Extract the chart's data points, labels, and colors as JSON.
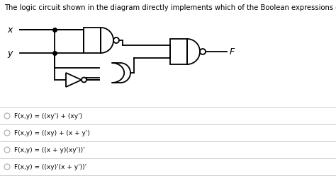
{
  "title": "The logic circuit shown in the diagram directly implements which of the Boolean expressions given below?",
  "title_fontsize": 7.2,
  "bg_color": "#ffffff",
  "text_color": "#000000",
  "label_x": "x",
  "label_y": "y",
  "label_f": "F",
  "options": [
    "F(x,y) = ((xy') + (xy')",
    "F(x,y) = ((xy) + (x + y')",
    "F(x,y) = ((x + y)(xy'))'",
    "F(x,y) = ((xy)'(x + y'))'"
  ],
  "gate_color": "#000000",
  "line_color": "#000000",
  "divider_color": "#cccccc",
  "lw": 1.3
}
